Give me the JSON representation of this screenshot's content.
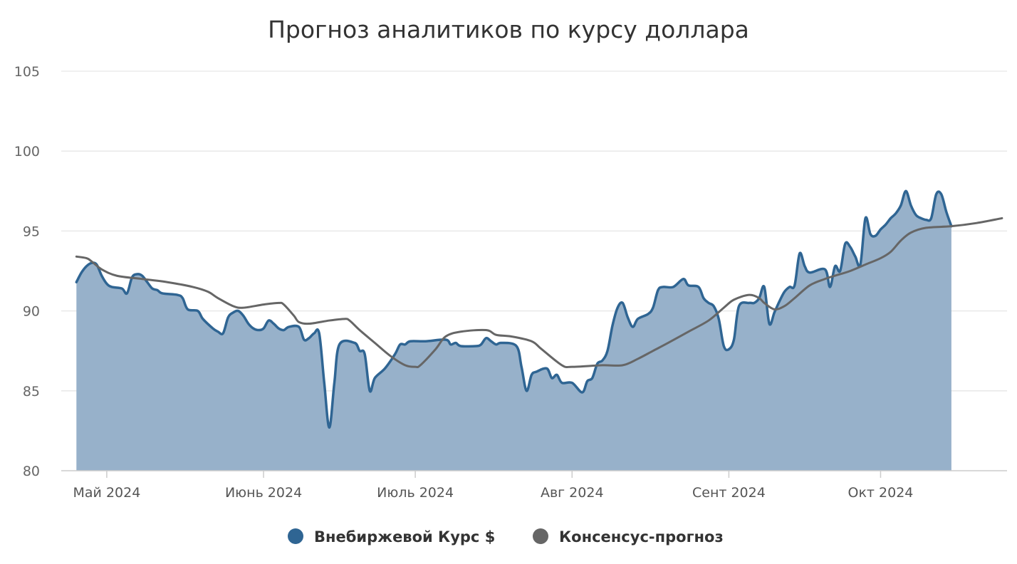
{
  "chart_data": {
    "type": "area",
    "title": "Прогноз аналитиков по курсу доллара",
    "xlabel": "",
    "ylabel": "",
    "ylim": [
      80,
      105
    ],
    "yticks": [
      80,
      85,
      90,
      95,
      100,
      105
    ],
    "xlim": [
      "2024-04-22",
      "2024-10-26"
    ],
    "xticks": [
      {
        "date": "2024-05-01",
        "label": "Май 2024"
      },
      {
        "date": "2024-06-01",
        "label": "Июнь 2024"
      },
      {
        "date": "2024-07-01",
        "label": "Июль 2024"
      },
      {
        "date": "2024-08-01",
        "label": "Авг 2024"
      },
      {
        "date": "2024-09-01",
        "label": "Сент 2024"
      },
      {
        "date": "2024-10-01",
        "label": "Окт 2024"
      }
    ],
    "grid": true,
    "legend_position": "bottom-center",
    "series": [
      {
        "name": "Внебиржевой Курс $",
        "kind": "area",
        "color": "#2f6593",
        "fill": "#97b1ca",
        "points": [
          [
            "2024-04-25",
            91.8
          ],
          [
            "2024-04-26",
            92.4
          ],
          [
            "2024-04-27",
            92.8
          ],
          [
            "2024-04-28",
            93.0
          ],
          [
            "2024-04-29",
            92.9
          ],
          [
            "2024-04-30",
            92.2
          ],
          [
            "2024-05-01",
            91.7
          ],
          [
            "2024-05-02",
            91.5
          ],
          [
            "2024-05-04",
            91.4
          ],
          [
            "2024-05-05",
            91.1
          ],
          [
            "2024-05-06",
            92.1
          ],
          [
            "2024-05-07",
            92.3
          ],
          [
            "2024-05-08",
            92.2
          ],
          [
            "2024-05-09",
            91.8
          ],
          [
            "2024-05-10",
            91.4
          ],
          [
            "2024-05-11",
            91.3
          ],
          [
            "2024-05-12",
            91.1
          ],
          [
            "2024-05-15",
            91.0
          ],
          [
            "2024-05-16",
            90.8
          ],
          [
            "2024-05-17",
            90.1
          ],
          [
            "2024-05-19",
            90.0
          ],
          [
            "2024-05-20",
            89.5
          ],
          [
            "2024-05-22",
            88.9
          ],
          [
            "2024-05-23",
            88.7
          ],
          [
            "2024-05-24",
            88.6
          ],
          [
            "2024-05-25",
            89.6
          ],
          [
            "2024-05-26",
            89.9
          ],
          [
            "2024-05-27",
            90.0
          ],
          [
            "2024-05-28",
            89.7
          ],
          [
            "2024-05-29",
            89.2
          ],
          [
            "2024-05-30",
            88.9
          ],
          [
            "2024-05-31",
            88.8
          ],
          [
            "2024-06-01",
            88.9
          ],
          [
            "2024-06-02",
            89.4
          ],
          [
            "2024-06-03",
            89.2
          ],
          [
            "2024-06-04",
            88.9
          ],
          [
            "2024-06-05",
            88.8
          ],
          [
            "2024-06-06",
            89.0
          ],
          [
            "2024-06-08",
            89.0
          ],
          [
            "2024-06-09",
            88.2
          ],
          [
            "2024-06-10",
            88.3
          ],
          [
            "2024-06-11",
            88.6
          ],
          [
            "2024-06-12",
            88.6
          ],
          [
            "2024-06-13",
            85.5
          ],
          [
            "2024-06-14",
            82.7
          ],
          [
            "2024-06-15",
            85.5
          ],
          [
            "2024-06-16",
            87.9
          ],
          [
            "2024-06-19",
            88.0
          ],
          [
            "2024-06-20",
            87.5
          ],
          [
            "2024-06-21",
            87.3
          ],
          [
            "2024-06-22",
            85.0
          ],
          [
            "2024-06-23",
            85.8
          ],
          [
            "2024-06-25",
            86.4
          ],
          [
            "2024-06-27",
            87.3
          ],
          [
            "2024-06-28",
            87.9
          ],
          [
            "2024-06-29",
            87.9
          ],
          [
            "2024-06-30",
            88.1
          ],
          [
            "2024-07-03",
            88.1
          ],
          [
            "2024-07-07",
            88.2
          ],
          [
            "2024-07-08",
            87.9
          ],
          [
            "2024-07-09",
            88.0
          ],
          [
            "2024-07-10",
            87.8
          ],
          [
            "2024-07-13",
            87.8
          ],
          [
            "2024-07-14",
            87.9
          ],
          [
            "2024-07-15",
            88.3
          ],
          [
            "2024-07-16",
            88.1
          ],
          [
            "2024-07-17",
            87.9
          ],
          [
            "2024-07-18",
            88.0
          ],
          [
            "2024-07-21",
            87.8
          ],
          [
            "2024-07-22",
            86.5
          ],
          [
            "2024-07-23",
            85.0
          ],
          [
            "2024-07-24",
            86.0
          ],
          [
            "2024-07-25",
            86.2
          ],
          [
            "2024-07-27",
            86.4
          ],
          [
            "2024-07-28",
            85.8
          ],
          [
            "2024-07-29",
            86.0
          ],
          [
            "2024-07-30",
            85.5
          ],
          [
            "2024-08-01",
            85.5
          ],
          [
            "2024-08-03",
            84.9
          ],
          [
            "2024-08-04",
            85.6
          ],
          [
            "2024-08-05",
            85.8
          ],
          [
            "2024-08-06",
            86.7
          ],
          [
            "2024-08-07",
            86.9
          ],
          [
            "2024-08-08",
            87.5
          ],
          [
            "2024-08-09",
            89.1
          ],
          [
            "2024-08-10",
            90.2
          ],
          [
            "2024-08-11",
            90.5
          ],
          [
            "2024-08-12",
            89.6
          ],
          [
            "2024-08-13",
            89.0
          ],
          [
            "2024-08-14",
            89.5
          ],
          [
            "2024-08-16",
            89.8
          ],
          [
            "2024-08-17",
            90.2
          ],
          [
            "2024-08-18",
            91.3
          ],
          [
            "2024-08-19",
            91.5
          ],
          [
            "2024-08-21",
            91.5
          ],
          [
            "2024-08-23",
            92.0
          ],
          [
            "2024-08-24",
            91.6
          ],
          [
            "2024-08-26",
            91.5
          ],
          [
            "2024-08-27",
            90.8
          ],
          [
            "2024-08-28",
            90.5
          ],
          [
            "2024-08-29",
            90.3
          ],
          [
            "2024-08-30",
            89.5
          ],
          [
            "2024-08-31",
            87.8
          ],
          [
            "2024-09-01",
            87.6
          ],
          [
            "2024-09-02",
            88.2
          ],
          [
            "2024-09-03",
            90.3
          ],
          [
            "2024-09-05",
            90.5
          ],
          [
            "2024-09-06",
            90.5
          ],
          [
            "2024-09-07",
            90.8
          ],
          [
            "2024-09-08",
            91.5
          ],
          [
            "2024-09-09",
            89.2
          ],
          [
            "2024-09-10",
            89.9
          ],
          [
            "2024-09-11",
            90.6
          ],
          [
            "2024-09-12",
            91.2
          ],
          [
            "2024-09-13",
            91.5
          ],
          [
            "2024-09-14",
            91.6
          ],
          [
            "2024-09-15",
            93.6
          ],
          [
            "2024-09-16",
            92.8
          ],
          [
            "2024-09-17",
            92.4
          ],
          [
            "2024-09-20",
            92.6
          ],
          [
            "2024-09-21",
            91.5
          ],
          [
            "2024-09-22",
            92.8
          ],
          [
            "2024-09-23",
            92.5
          ],
          [
            "2024-09-24",
            94.2
          ],
          [
            "2024-09-25",
            94.0
          ],
          [
            "2024-09-26",
            93.4
          ],
          [
            "2024-09-27",
            92.9
          ],
          [
            "2024-09-28",
            95.8
          ],
          [
            "2024-09-29",
            94.8
          ],
          [
            "2024-09-30",
            94.7
          ],
          [
            "2024-10-01",
            95.1
          ],
          [
            "2024-10-02",
            95.4
          ],
          [
            "2024-10-03",
            95.8
          ],
          [
            "2024-10-04",
            96.1
          ],
          [
            "2024-10-05",
            96.6
          ],
          [
            "2024-10-06",
            97.5
          ],
          [
            "2024-10-07",
            96.6
          ],
          [
            "2024-10-08",
            96.0
          ],
          [
            "2024-10-09",
            95.8
          ],
          [
            "2024-10-10",
            95.7
          ],
          [
            "2024-10-11",
            95.8
          ],
          [
            "2024-10-12",
            97.3
          ],
          [
            "2024-10-13",
            97.3
          ],
          [
            "2024-10-14",
            96.2
          ],
          [
            "2024-10-15",
            95.3
          ]
        ]
      },
      {
        "name": "Консенсус-прогноз",
        "kind": "line",
        "color": "#666666",
        "points": [
          [
            "2024-04-25",
            93.4
          ],
          [
            "2024-04-27",
            93.3
          ],
          [
            "2024-04-28",
            93.1
          ],
          [
            "2024-04-30",
            92.6
          ],
          [
            "2024-05-03",
            92.2
          ],
          [
            "2024-05-08",
            92.0
          ],
          [
            "2024-05-13",
            91.8
          ],
          [
            "2024-05-18",
            91.5
          ],
          [
            "2024-05-21",
            91.2
          ],
          [
            "2024-05-23",
            90.8
          ],
          [
            "2024-05-26",
            90.3
          ],
          [
            "2024-05-28",
            90.2
          ],
          [
            "2024-06-01",
            90.4
          ],
          [
            "2024-06-04",
            90.5
          ],
          [
            "2024-06-05",
            90.4
          ],
          [
            "2024-06-07",
            89.7
          ],
          [
            "2024-06-08",
            89.3
          ],
          [
            "2024-06-10",
            89.2
          ],
          [
            "2024-06-14",
            89.4
          ],
          [
            "2024-06-17",
            89.5
          ],
          [
            "2024-06-18",
            89.4
          ],
          [
            "2024-06-20",
            88.8
          ],
          [
            "2024-06-23",
            88.0
          ],
          [
            "2024-06-26",
            87.2
          ],
          [
            "2024-06-29",
            86.6
          ],
          [
            "2024-07-01",
            86.5
          ],
          [
            "2024-07-02",
            86.6
          ],
          [
            "2024-07-05",
            87.6
          ],
          [
            "2024-07-07",
            88.4
          ],
          [
            "2024-07-10",
            88.7
          ],
          [
            "2024-07-15",
            88.8
          ],
          [
            "2024-07-17",
            88.5
          ],
          [
            "2024-07-20",
            88.4
          ],
          [
            "2024-07-24",
            88.1
          ],
          [
            "2024-07-26",
            87.6
          ],
          [
            "2024-07-30",
            86.6
          ],
          [
            "2024-08-01",
            86.5
          ],
          [
            "2024-08-07",
            86.6
          ],
          [
            "2024-08-11",
            86.6
          ],
          [
            "2024-08-14",
            87.0
          ],
          [
            "2024-08-17",
            87.5
          ],
          [
            "2024-08-20",
            88.0
          ],
          [
            "2024-08-24",
            88.7
          ],
          [
            "2024-08-28",
            89.4
          ],
          [
            "2024-08-31",
            90.2
          ],
          [
            "2024-09-02",
            90.7
          ],
          [
            "2024-09-05",
            91.0
          ],
          [
            "2024-09-07",
            90.8
          ],
          [
            "2024-09-08",
            90.5
          ],
          [
            "2024-09-10",
            90.1
          ],
          [
            "2024-09-12",
            90.3
          ],
          [
            "2024-09-14",
            90.8
          ],
          [
            "2024-09-17",
            91.6
          ],
          [
            "2024-09-20",
            92.0
          ],
          [
            "2024-09-23",
            92.3
          ],
          [
            "2024-09-25",
            92.5
          ],
          [
            "2024-09-28",
            92.9
          ],
          [
            "2024-10-01",
            93.3
          ],
          [
            "2024-10-03",
            93.7
          ],
          [
            "2024-10-05",
            94.4
          ],
          [
            "2024-10-07",
            94.9
          ],
          [
            "2024-10-10",
            95.2
          ],
          [
            "2024-10-15",
            95.3
          ],
          [
            "2024-10-20",
            95.5
          ],
          [
            "2024-10-25",
            95.8
          ]
        ]
      }
    ]
  }
}
